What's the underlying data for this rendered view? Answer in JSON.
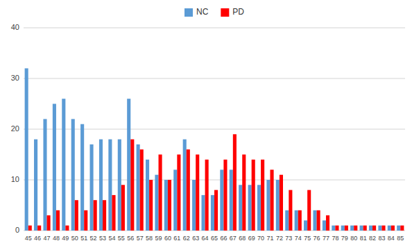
{
  "chart_data": {
    "type": "bar",
    "categories": [
      "45",
      "46",
      "47",
      "48",
      "49",
      "50",
      "51",
      "52",
      "53",
      "54",
      "55",
      "56",
      "57",
      "58",
      "59",
      "60",
      "61",
      "62",
      "63",
      "64",
      "65",
      "66",
      "67",
      "68",
      "69",
      "70",
      "71",
      "72",
      "73",
      "74",
      "75",
      "76",
      "77",
      "78",
      "79",
      "80",
      "81",
      "82",
      "83",
      "84",
      "85"
    ],
    "series": [
      {
        "name": "NC",
        "color": "#5B9BD5",
        "values": [
          32,
          18,
          22,
          25,
          26,
          22,
          21,
          17,
          18,
          18,
          18,
          26,
          17,
          14,
          11,
          10,
          12,
          18,
          10,
          7,
          7,
          12,
          12,
          9,
          9,
          9,
          10,
          10,
          4,
          4,
          2,
          4,
          2,
          1,
          1,
          1,
          1,
          1,
          1,
          1,
          1
        ]
      },
      {
        "name": "PD",
        "color": "#FF0000",
        "values": [
          1,
          1,
          3,
          4,
          1,
          6,
          4,
          6,
          6,
          7,
          9,
          18,
          16,
          10,
          15,
          10,
          15,
          16,
          15,
          14,
          8,
          14,
          19,
          15,
          14,
          14,
          12,
          11,
          8,
          4,
          8,
          4,
          3,
          1,
          1,
          1,
          1,
          1,
          1,
          1,
          1
        ]
      }
    ],
    "ylim": [
      0,
      40
    ],
    "yticks": [
      0,
      10,
      20,
      30,
      40
    ],
    "grid": true,
    "legend": "top"
  }
}
